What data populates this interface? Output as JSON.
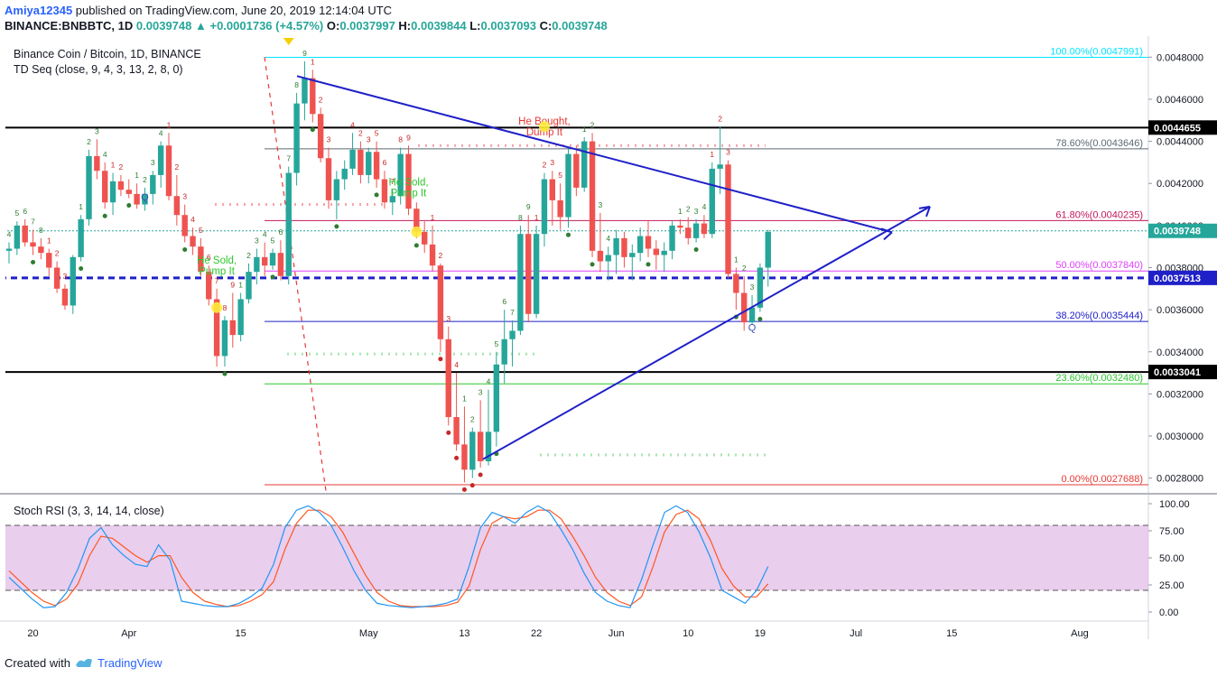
{
  "header": {
    "author": "Amiya12345",
    "published_text": "published on TradingView.com, June 20, 2019 12:14:04 UTC",
    "symbol": "BINANCE:BNBBTC, 1D",
    "last": "0.0039748",
    "change_arrow": "▲",
    "change": "+0.0001736 (+4.57%)",
    "o_label": "O:",
    "o": "0.0037997",
    "h_label": "H:",
    "h": "0.0039844",
    "l_label": "L:",
    "l": "0.0037093",
    "c_label": "C:",
    "c": "0.0039748"
  },
  "footer": {
    "created_with": "Created with",
    "brand": "TradingView"
  },
  "chart_data": {
    "type": "candlestick",
    "title": "Binance Coin / Bitcoin, 1D, BINANCE",
    "indicator_label": "TD Seq (close, 9, 4, 3, 13, 2, 8, 0)",
    "price_axis": {
      "range": [
        0.00273,
        0.0049
      ],
      "ticks": [
        "0.0028000",
        "0.0030000",
        "0.0032000",
        "0.0034000",
        "0.0036000",
        "0.0038000",
        "0.0040000",
        "0.0042000",
        "0.0044000",
        "0.0046000",
        "0.0048000"
      ]
    },
    "x_labels": [
      {
        "label": "20",
        "i": 3
      },
      {
        "label": "Apr",
        "i": 15
      },
      {
        "label": "15",
        "i": 29
      },
      {
        "label": "May",
        "i": 45
      },
      {
        "label": "13",
        "i": 57
      },
      {
        "label": "22",
        "i": 66
      },
      {
        "label": "Jun",
        "i": 76
      },
      {
        "label": "10",
        "i": 85
      },
      {
        "label": "19",
        "i": 94
      },
      {
        "label": "Jul",
        "i": 106
      },
      {
        "label": "15",
        "i": 118
      },
      {
        "label": "Aug",
        "i": 134
      }
    ],
    "current_price": "0.0039748",
    "price_badges": [
      {
        "value": 0.0044655,
        "text": "0.0044655",
        "color": "#000000"
      },
      {
        "value": 0.0037513,
        "text": "0.0037513",
        "color": "#1f20c8"
      },
      {
        "value": 0.0033041,
        "text": "0.0033041",
        "color": "#000000"
      },
      {
        "value": 0.0039748,
        "text": "0.0039748",
        "color": "#26a69a"
      }
    ],
    "fib_levels": [
      {
        "label": "100.00%(0.0047991)",
        "value": 0.0047991,
        "color": "#00e5ff"
      },
      {
        "label": "78.60%(0.0043646)",
        "value": 0.0043646,
        "color": "#5b6a73"
      },
      {
        "label": "61.80%(0.0040235)",
        "value": 0.0040235,
        "color": "#c2185b"
      },
      {
        "label": "50.00%(0.0037840)",
        "value": 0.003784,
        "color": "#e040fb"
      },
      {
        "label": "38.20%(0.0035444)",
        "value": 0.0035444,
        "color": "#1f20c8"
      },
      {
        "label": "23.60%(0.0032480)",
        "value": 0.003248,
        "color": "#2ec72e"
      },
      {
        "label": "0.00%(0.0027688)",
        "value": 0.0027688,
        "color": "#e53935"
      }
    ],
    "annotations": [
      {
        "text": "He Sold,\nPump It",
        "i": 26,
        "price": 0.00382,
        "color": "#2ec72e"
      },
      {
        "text": "He Sold,\nPump It",
        "i": 50,
        "price": 0.00419,
        "color": "#2ec72e"
      },
      {
        "text": "He Bought,\nDump It",
        "i": 67,
        "price": 0.00448,
        "color": "#e53935"
      }
    ],
    "candles": [
      [
        0.00388,
        0.00392,
        0.00382,
        0.00389
      ],
      [
        0.00389,
        0.00402,
        0.00386,
        0.004
      ],
      [
        0.004,
        0.00403,
        0.0039,
        0.00392
      ],
      [
        0.00392,
        0.00398,
        0.00386,
        0.0039
      ],
      [
        0.0039,
        0.00394,
        0.00384,
        0.00387
      ],
      [
        0.00387,
        0.00389,
        0.00376,
        0.0038
      ],
      [
        0.0038,
        0.00383,
        0.00368,
        0.0037
      ],
      [
        0.0037,
        0.00372,
        0.0036,
        0.00362
      ],
      [
        0.00362,
        0.00386,
        0.00358,
        0.00385
      ],
      [
        0.00385,
        0.00405,
        0.00383,
        0.00403
      ],
      [
        0.00403,
        0.00436,
        0.004,
        0.00433
      ],
      [
        0.00433,
        0.00441,
        0.00422,
        0.00426
      ],
      [
        0.00426,
        0.0043,
        0.00408,
        0.00411
      ],
      [
        0.00411,
        0.00425,
        0.00405,
        0.00421
      ],
      [
        0.00421,
        0.00424,
        0.00414,
        0.00417
      ],
      [
        0.00417,
        0.00422,
        0.00413,
        0.00415
      ],
      [
        0.00415,
        0.0042,
        0.00408,
        0.0041
      ],
      [
        0.0041,
        0.00418,
        0.00407,
        0.00415
      ],
      [
        0.00415,
        0.00426,
        0.0041,
        0.00424
      ],
      [
        0.00424,
        0.0044,
        0.00418,
        0.00438
      ],
      [
        0.00438,
        0.00444,
        0.00412,
        0.00414
      ],
      [
        0.00414,
        0.00424,
        0.004,
        0.00405
      ],
      [
        0.00405,
        0.0041,
        0.00392,
        0.00395
      ],
      [
        0.00395,
        0.00399,
        0.00386,
        0.0039
      ],
      [
        0.0039,
        0.00394,
        0.00376,
        0.00378
      ],
      [
        0.00378,
        0.00381,
        0.00362,
        0.00365
      ],
      [
        0.00365,
        0.0037,
        0.00333,
        0.00338
      ],
      [
        0.00338,
        0.00357,
        0.00333,
        0.00355
      ],
      [
        0.00355,
        0.00368,
        0.00342,
        0.00348
      ],
      [
        0.00348,
        0.00368,
        0.00345,
        0.00365
      ],
      [
        0.00365,
        0.00382,
        0.00363,
        0.00378
      ],
      [
        0.00378,
        0.00389,
        0.00372,
        0.00385
      ],
      [
        0.00385,
        0.00392,
        0.00376,
        0.00381
      ],
      [
        0.00381,
        0.00389,
        0.00379,
        0.00387
      ],
      [
        0.00387,
        0.00393,
        0.00374,
        0.00376
      ],
      [
        0.00376,
        0.00428,
        0.00372,
        0.00425
      ],
      [
        0.00425,
        0.00463,
        0.00419,
        0.00458
      ],
      [
        0.00458,
        0.00478,
        0.0045,
        0.0047
      ],
      [
        0.0047,
        0.00474,
        0.00449,
        0.00453
      ],
      [
        0.00453,
        0.00456,
        0.0043,
        0.00432
      ],
      [
        0.00432,
        0.00437,
        0.00408,
        0.00412
      ],
      [
        0.00412,
        0.00426,
        0.00403,
        0.00422
      ],
      [
        0.00422,
        0.00431,
        0.00417,
        0.00427
      ],
      [
        0.00427,
        0.00444,
        0.00424,
        0.00436
      ],
      [
        0.00436,
        0.0044,
        0.0042,
        0.00424
      ],
      [
        0.00424,
        0.00437,
        0.0042,
        0.00435
      ],
      [
        0.00435,
        0.0044,
        0.00418,
        0.00422
      ],
      [
        0.00422,
        0.00426,
        0.00408,
        0.00411
      ],
      [
        0.00411,
        0.00417,
        0.00405,
        0.00414
      ],
      [
        0.00414,
        0.00437,
        0.0041,
        0.00434
      ],
      [
        0.00434,
        0.00438,
        0.00405,
        0.00408
      ],
      [
        0.00408,
        0.00411,
        0.00394,
        0.00397
      ],
      [
        0.00397,
        0.00402,
        0.00387,
        0.00391
      ],
      [
        0.00391,
        0.004,
        0.00378,
        0.00381
      ],
      [
        0.00381,
        0.00382,
        0.0034,
        0.00346
      ],
      [
        0.00346,
        0.00352,
        0.00305,
        0.00309
      ],
      [
        0.00309,
        0.0033,
        0.00293,
        0.00296
      ],
      [
        0.00296,
        0.00314,
        0.00278,
        0.00284
      ],
      [
        0.00284,
        0.00304,
        0.0028,
        0.00302
      ],
      [
        0.00302,
        0.00317,
        0.00285,
        0.00288
      ],
      [
        0.00288,
        0.00322,
        0.00286,
        0.00302
      ],
      [
        0.00302,
        0.0034,
        0.00295,
        0.00334
      ],
      [
        0.00334,
        0.0036,
        0.00325,
        0.00346
      ],
      [
        0.00346,
        0.00355,
        0.00333,
        0.0035
      ],
      [
        0.0035,
        0.004,
        0.00348,
        0.00396
      ],
      [
        0.00396,
        0.00405,
        0.00354,
        0.00358
      ],
      [
        0.00358,
        0.004,
        0.00356,
        0.00396
      ],
      [
        0.00396,
        0.00425,
        0.0039,
        0.00422
      ],
      [
        0.00422,
        0.00426,
        0.004,
        0.00412
      ],
      [
        0.00412,
        0.0042,
        0.00398,
        0.00404
      ],
      [
        0.00404,
        0.00437,
        0.00399,
        0.00434
      ],
      [
        0.00434,
        0.00438,
        0.00414,
        0.00418
      ],
      [
        0.00418,
        0.00442,
        0.00416,
        0.0044
      ],
      [
        0.0044,
        0.00444,
        0.00385,
        0.00388
      ],
      [
        0.00388,
        0.00406,
        0.00378,
        0.00383
      ],
      [
        0.00383,
        0.0039,
        0.00374,
        0.00386
      ],
      [
        0.00386,
        0.00398,
        0.00377,
        0.00394
      ],
      [
        0.00394,
        0.00397,
        0.0038,
        0.00385
      ],
      [
        0.00385,
        0.00391,
        0.00374,
        0.00387
      ],
      [
        0.00387,
        0.00399,
        0.00383,
        0.00395
      ],
      [
        0.00395,
        0.00402,
        0.00385,
        0.00389
      ],
      [
        0.00389,
        0.00393,
        0.00379,
        0.00386
      ],
      [
        0.00386,
        0.00392,
        0.00378,
        0.00388
      ],
      [
        0.00388,
        0.00402,
        0.00384,
        0.004
      ],
      [
        0.004,
        0.00403,
        0.00396,
        0.00399
      ],
      [
        0.00399,
        0.00404,
        0.00391,
        0.00394
      ],
      [
        0.00394,
        0.00403,
        0.00392,
        0.00401
      ],
      [
        0.00401,
        0.00405,
        0.00394,
        0.00396
      ],
      [
        0.00396,
        0.0043,
        0.00394,
        0.00427
      ],
      [
        0.00427,
        0.00447,
        0.00415,
        0.00429
      ],
      [
        0.00429,
        0.00431,
        0.00375,
        0.00377
      ],
      [
        0.00377,
        0.0038,
        0.0036,
        0.00368
      ],
      [
        0.00368,
        0.00376,
        0.0035,
        0.00354
      ],
      [
        0.00354,
        0.00367,
        0.00353,
        0.00361
      ],
      [
        0.00361,
        0.00382,
        0.00359,
        0.0038
      ],
      [
        0.0038,
        0.00398,
        0.00371,
        0.00397
      ]
    ],
    "td_numbers": [
      {
        "i": 0,
        "n": "4",
        "d": "up"
      },
      {
        "i": 1,
        "n": "5",
        "d": "up"
      },
      {
        "i": 2,
        "n": "6",
        "d": "up"
      },
      {
        "i": 3,
        "n": "7",
        "d": "up"
      },
      {
        "i": 4,
        "n": "8",
        "d": "up"
      },
      {
        "i": 5,
        "n": "1",
        "d": "dn"
      },
      {
        "i": 6,
        "n": "2",
        "d": "dn"
      },
      {
        "i": 7,
        "n": "3",
        "d": "dn"
      },
      {
        "i": 9,
        "n": "1",
        "d": "up"
      },
      {
        "i": 10,
        "n": "2",
        "d": "up"
      },
      {
        "i": 11,
        "n": "3",
        "d": "up"
      },
      {
        "i": 12,
        "n": "4",
        "d": "up"
      },
      {
        "i": 13,
        "n": "1",
        "d": "dn"
      },
      {
        "i": 14,
        "n": "2",
        "d": "dn"
      },
      {
        "i": 16,
        "n": "1",
        "d": "up"
      },
      {
        "i": 17,
        "n": "2",
        "d": "up"
      },
      {
        "i": 18,
        "n": "3",
        "d": "up"
      },
      {
        "i": 19,
        "n": "4",
        "d": "up"
      },
      {
        "i": 20,
        "n": "1",
        "d": "dn"
      },
      {
        "i": 21,
        "n": "2",
        "d": "dn"
      },
      {
        "i": 22,
        "n": "3",
        "d": "dn"
      },
      {
        "i": 23,
        "n": "4",
        "d": "dn"
      },
      {
        "i": 24,
        "n": "5",
        "d": "dn"
      },
      {
        "i": 25,
        "n": "6",
        "d": "dn"
      },
      {
        "i": 26,
        "n": "7",
        "d": "dn"
      },
      {
        "i": 27,
        "n": "8",
        "d": "dn"
      },
      {
        "i": 28,
        "n": "9",
        "d": "dn"
      },
      {
        "i": 29,
        "n": "1",
        "d": "up"
      },
      {
        "i": 30,
        "n": "2",
        "d": "up"
      },
      {
        "i": 31,
        "n": "3",
        "d": "up"
      },
      {
        "i": 32,
        "n": "4",
        "d": "up"
      },
      {
        "i": 33,
        "n": "5",
        "d": "up"
      },
      {
        "i": 34,
        "n": "6",
        "d": "up"
      },
      {
        "i": 35,
        "n": "7",
        "d": "up"
      },
      {
        "i": 36,
        "n": "8",
        "d": "up"
      },
      {
        "i": 37,
        "n": "9",
        "d": "up"
      },
      {
        "i": 38,
        "n": "1",
        "d": "dn"
      },
      {
        "i": 39,
        "n": "2",
        "d": "dn"
      },
      {
        "i": 40,
        "n": "3",
        "d": "dn"
      },
      {
        "i": 43,
        "n": "4",
        "d": "dn"
      },
      {
        "i": 44,
        "n": "2",
        "d": "dn"
      },
      {
        "i": 45,
        "n": "3",
        "d": "dn"
      },
      {
        "i": 46,
        "n": "5",
        "d": "dn"
      },
      {
        "i": 47,
        "n": "6",
        "d": "dn"
      },
      {
        "i": 48,
        "n": "7",
        "d": "dn"
      },
      {
        "i": 49,
        "n": "8",
        "d": "dn"
      },
      {
        "i": 50,
        "n": "9",
        "d": "dn"
      },
      {
        "i": 53,
        "n": "1",
        "d": "dn"
      },
      {
        "i": 54,
        "n": "2",
        "d": "dn"
      },
      {
        "i": 55,
        "n": "3",
        "d": "dn"
      },
      {
        "i": 56,
        "n": "4",
        "d": "dn"
      },
      {
        "i": 57,
        "n": "1",
        "d": "up"
      },
      {
        "i": 58,
        "n": "2",
        "d": "up"
      },
      {
        "i": 59,
        "n": "3",
        "d": "up"
      },
      {
        "i": 60,
        "n": "4",
        "d": "up"
      },
      {
        "i": 61,
        "n": "5",
        "d": "up"
      },
      {
        "i": 62,
        "n": "6",
        "d": "up"
      },
      {
        "i": 63,
        "n": "7",
        "d": "up"
      },
      {
        "i": 64,
        "n": "8",
        "d": "up"
      },
      {
        "i": 65,
        "n": "9",
        "d": "up"
      },
      {
        "i": 66,
        "n": "1",
        "d": "dn"
      },
      {
        "i": 67,
        "n": "2",
        "d": "dn"
      },
      {
        "i": 68,
        "n": "3",
        "d": "dn"
      },
      {
        "i": 69,
        "n": "5",
        "d": "dn"
      },
      {
        "i": 72,
        "n": "1",
        "d": "up"
      },
      {
        "i": 73,
        "n": "2",
        "d": "up"
      },
      {
        "i": 74,
        "n": "3",
        "d": "up"
      },
      {
        "i": 75,
        "n": "4",
        "d": "up"
      },
      {
        "i": 84,
        "n": "1",
        "d": "up"
      },
      {
        "i": 85,
        "n": "2",
        "d": "up"
      },
      {
        "i": 86,
        "n": "3",
        "d": "up"
      },
      {
        "i": 87,
        "n": "4",
        "d": "up"
      },
      {
        "i": 88,
        "n": "1",
        "d": "dn"
      },
      {
        "i": 89,
        "n": "2",
        "d": "dn"
      },
      {
        "i": 90,
        "n": "3",
        "d": "dn"
      },
      {
        "i": 91,
        "n": "1",
        "d": "up"
      },
      {
        "i": 92,
        "n": "2",
        "d": "up"
      },
      {
        "i": 93,
        "n": "3",
        "d": "up"
      }
    ],
    "stoch_rsi": {
      "label": "Stoch RSI (3, 3, 14, 14, close)",
      "ticks": [
        "100.00",
        "75.00",
        "50.00",
        "25.00",
        "0.00"
      ],
      "band": [
        20,
        80
      ],
      "k": [
        32,
        22,
        12,
        4,
        5,
        18,
        40,
        68,
        78,
        62,
        52,
        44,
        42,
        62,
        48,
        10,
        8,
        6,
        5,
        5,
        8,
        14,
        22,
        44,
        78,
        94,
        98,
        92,
        80,
        60,
        38,
        20,
        8,
        6,
        5,
        4,
        5,
        6,
        8,
        12,
        42,
        78,
        92,
        88,
        82,
        92,
        98,
        92,
        76,
        58,
        36,
        18,
        10,
        6,
        4,
        30,
        62,
        92,
        98,
        92,
        74,
        50,
        20,
        14,
        8,
        20,
        42
      ],
      "d": [
        38,
        28,
        18,
        10,
        6,
        12,
        26,
        52,
        70,
        68,
        60,
        52,
        46,
        52,
        52,
        32,
        18,
        10,
        7,
        5,
        6,
        10,
        16,
        28,
        58,
        82,
        94,
        94,
        88,
        74,
        54,
        34,
        18,
        10,
        6,
        5,
        5,
        5,
        6,
        9,
        24,
        58,
        82,
        88,
        86,
        88,
        94,
        94,
        86,
        70,
        52,
        32,
        18,
        10,
        6,
        14,
        42,
        74,
        90,
        94,
        86,
        66,
        40,
        24,
        14,
        14,
        26
      ]
    }
  }
}
